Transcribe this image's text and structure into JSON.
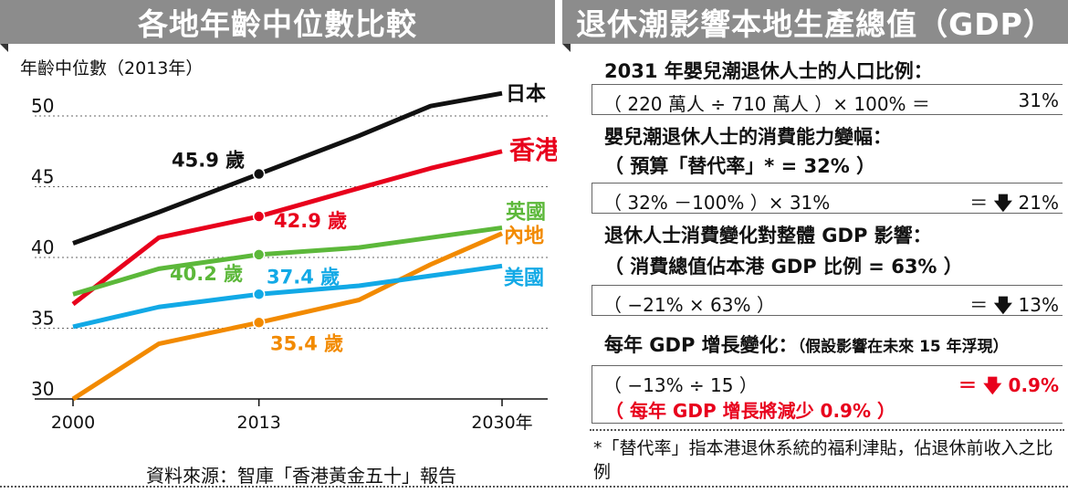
{
  "left_title": "各地年齡中位數比較",
  "right_title": "退休潮影響本地生產總值（GDP）",
  "chart_data": {
    "type": "line",
    "title": "各地年齡中位數比較",
    "ylabel": "年齡中位數（2013年）",
    "x_ticks": [
      "2000",
      "2013",
      "2030年"
    ],
    "x": [
      2000,
      2006,
      2013,
      2020,
      2025,
      2030
    ],
    "ylim": [
      30,
      52
    ],
    "y_ticks": [
      "30",
      "35",
      "40",
      "45",
      "50"
    ],
    "grid": "horizontal-dashed",
    "series": [
      {
        "name": "日本",
        "color": "#111111",
        "values": [
          41.0,
          43.2,
          45.9,
          48.6,
          50.7,
          51.6
        ]
      },
      {
        "name": "香港",
        "color": "#e8001c",
        "values": [
          36.7,
          41.4,
          42.9,
          44.9,
          46.3,
          47.5
        ]
      },
      {
        "name": "英國",
        "color": "#5cb83a",
        "values": [
          37.4,
          39.2,
          40.2,
          40.7,
          41.4,
          42.1
        ]
      },
      {
        "name": "內地",
        "color": "#f28a00",
        "values": [
          30.0,
          33.9,
          35.4,
          37.0,
          39.5,
          41.7
        ]
      },
      {
        "name": "美國",
        "color": "#12a9e6",
        "values": [
          35.1,
          36.5,
          37.4,
          38.0,
          38.7,
          39.4
        ]
      }
    ],
    "annotations": [
      {
        "text": "45.9 歲",
        "series": "日本",
        "color": "#111111"
      },
      {
        "text": "42.9 歲",
        "series": "香港",
        "color": "#e8001c"
      },
      {
        "text": "40.2 歲",
        "series": "英國",
        "color": "#5cb83a"
      },
      {
        "text": "37.4 歲",
        "series": "美國",
        "color": "#12a9e6"
      },
      {
        "text": "35.4 歲",
        "series": "內地",
        "color": "#f28a00"
      }
    ]
  },
  "source": "資料來源：智庫「香港黃金五十」報告",
  "calc": {
    "s1_heading": "2031 年嬰兒潮退休人士的人口比例：",
    "s1_lhs": "（ 220 萬人 ÷ 710 萬人 ）× 100% ＝",
    "s1_rhs": "31%",
    "s2_heading": "嬰兒潮退休人士的消費能力變幅：",
    "s2_sub": "（ 預算「替代率」* = 32% ）",
    "s2_lhs": "（ 32% －100% ）× 31%",
    "s2_eq": "＝",
    "s2_rhs": "21%",
    "s3_heading": "退休人士消費變化對整體 GDP 影響：",
    "s3_sub": "（ 消費總值佔本港 GDP 比例 = 63% ）",
    "s3_lhs": "（ −21% × 63% ）",
    "s3_eq": "＝",
    "s3_rhs": "13%",
    "s4_heading": "每年 GDP 增長變化：",
    "s4_note": "（假設影響在未來 15 年浮現）",
    "s4_lhs": "（ −13% ÷ 15 ）",
    "s4_eq": "＝",
    "s4_rhs": "0.9%",
    "s4_result": "（ 每年 GDP 增長將減少 0.9% ）",
    "down_arrow": "🡇"
  },
  "footnote": "*「替代率」指本港退休系統的福利津貼，佔退休前收入之比例"
}
